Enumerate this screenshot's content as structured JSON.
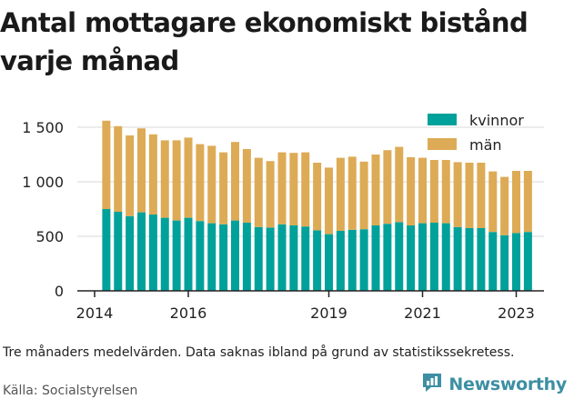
{
  "title": "Antal mottagare ekonomiskt bistånd varje månad",
  "note": "Tre månaders medelvärden. Data saknas ibland på grund av statistikssekretess.",
  "source": "Källa: Socialstyrelsen",
  "brand": {
    "name": "Newsworthy",
    "icon": "newsworthy-logo-icon"
  },
  "colors": {
    "kvinnor": "#00a19a",
    "man": "#ddab56",
    "grid": "#d9d9d9",
    "axis": "#222222",
    "brand": "#3d8fa3"
  },
  "chart_data": {
    "type": "bar",
    "stacked": true,
    "x_ticks": [
      "2014",
      "2016",
      "2019",
      "2021",
      "2023"
    ],
    "y_ticks": [
      "0",
      "500",
      "1 000",
      "1 500"
    ],
    "y_tick_values": [
      0,
      500,
      1000,
      1500
    ],
    "ylim": [
      0,
      1700
    ],
    "grid": true,
    "legend_position": "top-right",
    "legend": [
      "kvinnor",
      "män"
    ],
    "periods": [
      "2014 T2",
      "2014 T3",
      "2014 T4",
      "2015 T1",
      "2015 T2",
      "2015 T3",
      "2015 T4",
      "2016 T1",
      "2016 T2",
      "2016 T3",
      "2016 T4",
      "2017 T1",
      "2017 T2",
      "2017 T3",
      "2017 T4",
      "2018 T1",
      "2018 T2",
      "2018 T3",
      "2018 T4",
      "2019 T1",
      "2019 T2",
      "2019 T3",
      "2019 T4",
      "2020 T1",
      "2020 T2",
      "2020 T3",
      "2020 T4",
      "2021 T1",
      "2021 T2",
      "2021 T3",
      "2021 T4",
      "2022 T1",
      "2022 T2",
      "2022 T3",
      "2022 T4",
      "2023 T1",
      "2023 T2"
    ],
    "series": [
      {
        "name": "kvinnor",
        "values": [
          750,
          725,
          685,
          720,
          700,
          670,
          645,
          670,
          640,
          620,
          610,
          645,
          625,
          585,
          580,
          610,
          600,
          590,
          555,
          520,
          550,
          560,
          565,
          600,
          615,
          630,
          600,
          620,
          625,
          620,
          585,
          575,
          575,
          540,
          510,
          530,
          540
        ]
      },
      {
        "name": "män",
        "values": [
          810,
          785,
          740,
          770,
          735,
          710,
          735,
          735,
          705,
          710,
          660,
          720,
          675,
          635,
          610,
          660,
          665,
          680,
          620,
          610,
          670,
          670,
          620,
          650,
          675,
          690,
          625,
          600,
          575,
          580,
          595,
          600,
          600,
          555,
          535,
          570,
          560
        ]
      }
    ]
  }
}
